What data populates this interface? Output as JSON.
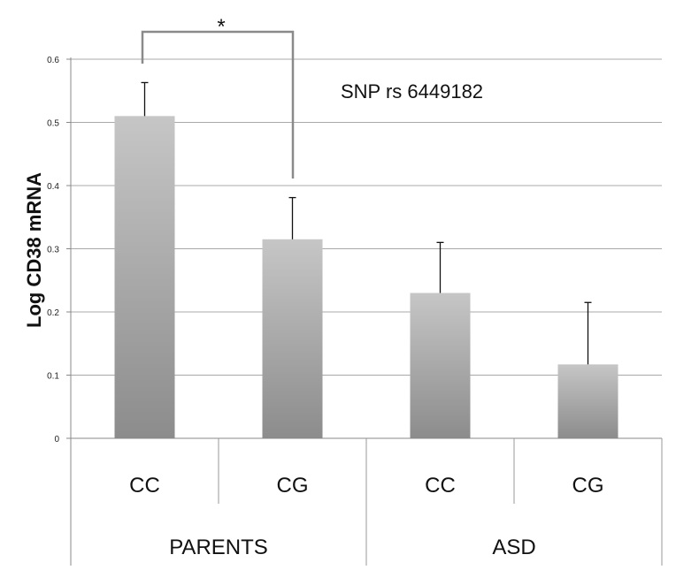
{
  "chart_data": {
    "type": "bar",
    "title": "",
    "ylabel": "Log CD38 mRNA",
    "ylim": [
      0,
      0.6
    ],
    "yticks": [
      0,
      0.1,
      0.2,
      0.3,
      0.4,
      0.5,
      0.6
    ],
    "ytick_labels": [
      "0",
      "0.1",
      "0.2",
      "0.3",
      "0.4",
      "0.5",
      "0.6"
    ],
    "grid": true,
    "bar_color": "#a9a9a9",
    "annotation": "SNP rs 6449182",
    "groups": [
      {
        "label": "PARENTS",
        "categories": [
          "CC",
          "CG"
        ]
      },
      {
        "label": "ASD",
        "categories": [
          "CC",
          "CG"
        ]
      }
    ],
    "categories": [
      "CC",
      "CG",
      "CC",
      "CG"
    ],
    "values": [
      0.51,
      0.315,
      0.23,
      0.117
    ],
    "error_upper": [
      0.563,
      0.381,
      0.31,
      0.215
    ],
    "significance": {
      "between": [
        0,
        1
      ],
      "label": "*"
    }
  }
}
